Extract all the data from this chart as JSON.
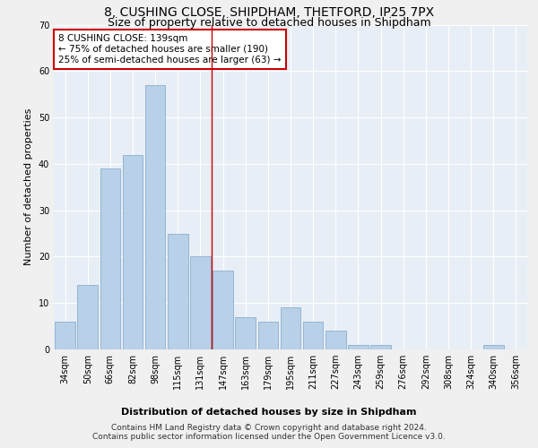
{
  "title": "8, CUSHING CLOSE, SHIPDHAM, THETFORD, IP25 7PX",
  "subtitle": "Size of property relative to detached houses in Shipdham",
  "xlabel": "Distribution of detached houses by size in Shipdham",
  "ylabel": "Number of detached properties",
  "categories": [
    "34sqm",
    "50sqm",
    "66sqm",
    "82sqm",
    "98sqm",
    "115sqm",
    "131sqm",
    "147sqm",
    "163sqm",
    "179sqm",
    "195sqm",
    "211sqm",
    "227sqm",
    "243sqm",
    "259sqm",
    "276sqm",
    "292sqm",
    "308sqm",
    "324sqm",
    "340sqm",
    "356sqm"
  ],
  "values": [
    6,
    14,
    39,
    42,
    57,
    25,
    20,
    17,
    7,
    6,
    9,
    6,
    4,
    1,
    1,
    0,
    0,
    0,
    0,
    1,
    0
  ],
  "bar_color": "#b8d0e8",
  "bar_edge_color": "#8ab0d0",
  "background_color": "#e8eef5",
  "grid_color": "#ffffff",
  "ylim": [
    0,
    70
  ],
  "yticks": [
    0,
    10,
    20,
    30,
    40,
    50,
    60,
    70
  ],
  "vline_x": 6.5,
  "vline_color": "#cc0000",
  "annotation_title": "8 CUSHING CLOSE: 139sqm",
  "annotation_line1": "← 75% of detached houses are smaller (190)",
  "annotation_line2": "25% of semi-detached houses are larger (63) →",
  "footer_line1": "Contains HM Land Registry data © Crown copyright and database right 2024.",
  "footer_line2": "Contains public sector information licensed under the Open Government Licence v3.0.",
  "title_fontsize": 10,
  "subtitle_fontsize": 9,
  "axis_label_fontsize": 8,
  "tick_fontsize": 7,
  "annotation_fontsize": 7.5,
  "footer_fontsize": 6.5
}
